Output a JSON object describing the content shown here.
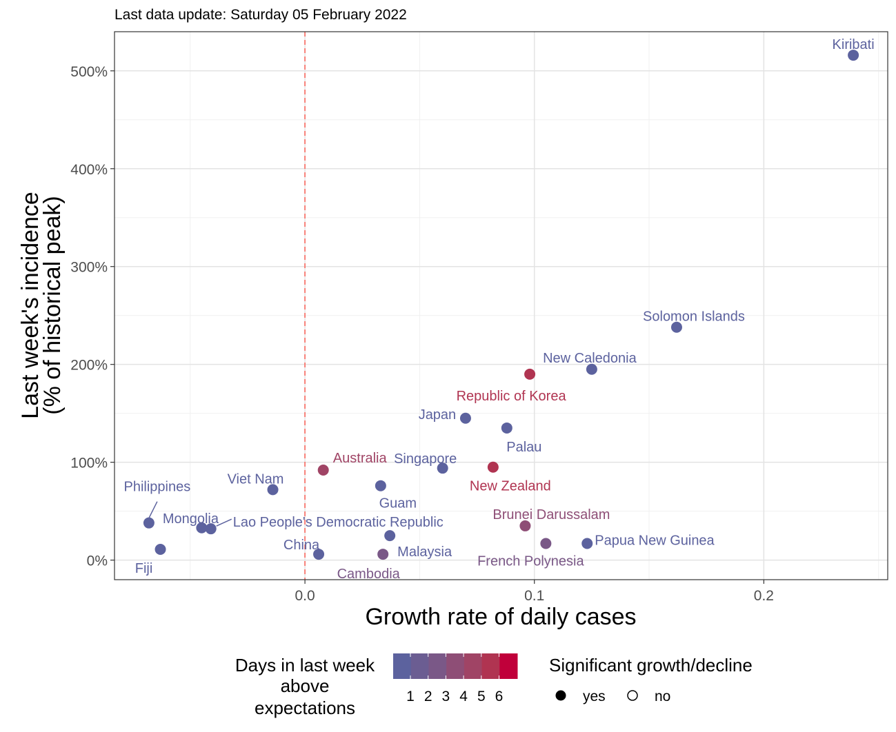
{
  "subtitle": "Last data update: Saturday 05 February 2022",
  "chart_data": {
    "type": "scatter",
    "xlabel": "Growth rate of daily cases",
    "ylabel_line1": "Last week's incidence",
    "ylabel_line2": "(% of historical peak)",
    "xlim": [
      -0.083,
      0.254
    ],
    "ylim": [
      -20,
      540
    ],
    "x_ticks": [
      0.0,
      0.1,
      0.2
    ],
    "x_tick_labels": [
      "0.0",
      "0.1",
      "0.2"
    ],
    "y_ticks": [
      0,
      100,
      200,
      300,
      400,
      500
    ],
    "y_tick_labels": [
      "0%",
      "100%",
      "200%",
      "300%",
      "400%",
      "500%"
    ],
    "reference_line": {
      "x": 0,
      "style": "dashed",
      "color": "#f8766d"
    },
    "grid": true,
    "colors": {
      "1": "#5c629e",
      "2": "#7a5887",
      "3": "#8e4e76",
      "4": "#a04465",
      "5": "#b03451",
      "6": "#c0003a"
    },
    "points": [
      {
        "name": "Kiribati",
        "x": 0.239,
        "y": 516,
        "days": 1
      },
      {
        "name": "Solomon Islands",
        "x": 0.162,
        "y": 238,
        "days": 1
      },
      {
        "name": "New Caledonia",
        "x": 0.125,
        "y": 195,
        "days": 1
      },
      {
        "name": "Republic of Korea",
        "x": 0.098,
        "y": 190,
        "days": 5
      },
      {
        "name": "Japan",
        "x": 0.07,
        "y": 145,
        "days": 1
      },
      {
        "name": "Palau",
        "x": 0.088,
        "y": 135,
        "days": 1
      },
      {
        "name": "Singapore",
        "x": 0.06,
        "y": 94,
        "days": 1
      },
      {
        "name": "New Zealand",
        "x": 0.082,
        "y": 95,
        "days": 5
      },
      {
        "name": "Australia",
        "x": 0.008,
        "y": 92,
        "days": 4
      },
      {
        "name": "Guam",
        "x": 0.033,
        "y": 76,
        "days": 1
      },
      {
        "name": "Viet Nam",
        "x": -0.014,
        "y": 72,
        "days": 1
      },
      {
        "name": "Philippines",
        "x": -0.068,
        "y": 38,
        "days": 1
      },
      {
        "name": "Mongolia",
        "x": -0.045,
        "y": 33,
        "days": 1
      },
      {
        "name": "Lao People's Democratic Republic",
        "x": -0.041,
        "y": 32,
        "days": 1
      },
      {
        "name": "Fiji",
        "x": -0.063,
        "y": 11,
        "days": 1
      },
      {
        "name": "China",
        "x": 0.006,
        "y": 6,
        "days": 1
      },
      {
        "name": "Cambodia",
        "x": 0.034,
        "y": 6,
        "days": 2
      },
      {
        "name": "Malaysia",
        "x": 0.037,
        "y": 25,
        "days": 1
      },
      {
        "name": "Brunei Darussalam",
        "x": 0.096,
        "y": 35,
        "days": 3
      },
      {
        "name": "French Polynesia",
        "x": 0.105,
        "y": 17,
        "days": 2
      },
      {
        "name": "Papua New Guinea",
        "x": 0.123,
        "y": 17,
        "days": 1
      }
    ]
  },
  "legend": {
    "days_title_1": "Days in last week",
    "days_title_2": "above",
    "days_title_3": "expectations",
    "days_labels": [
      "1",
      "2",
      "3",
      "4",
      "5",
      "6"
    ],
    "signif_title": "Significant growth/decline",
    "signif_yes": "yes",
    "signif_no": "no"
  }
}
